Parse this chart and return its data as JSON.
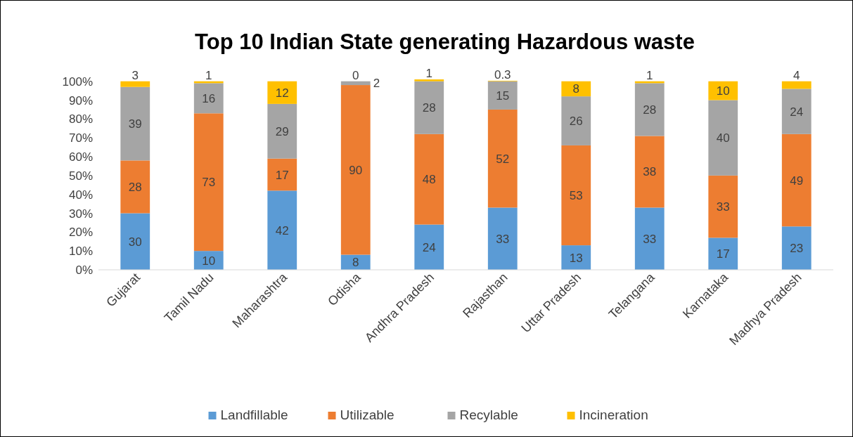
{
  "chart_data": {
    "type": "bar",
    "title": "Top 10 Indian State generating Hazardous waste",
    "categories": [
      "Gujarat",
      "Tamil Nadu",
      "Maharashtra",
      "Odisha",
      "Andhra Pradesh",
      "Rajasthan",
      "Uttar Pradesh",
      "Telangana",
      "Karnataka",
      "Madhya Pradesh"
    ],
    "stacked": true,
    "data_labels": true,
    "legend": "bottom",
    "ylim": [
      0,
      101
    ],
    "yticks": [
      {
        "value": 0,
        "label": "0%"
      },
      {
        "value": 10,
        "label": "10%"
      },
      {
        "value": 20,
        "label": "20%"
      },
      {
        "value": 30,
        "label": "30%"
      },
      {
        "value": 40,
        "label": "40%"
      },
      {
        "value": 50,
        "label": "50%"
      },
      {
        "value": 60,
        "label": "60%"
      },
      {
        "value": 70,
        "label": "70%"
      },
      {
        "value": 80,
        "label": "80%"
      },
      {
        "value": 90,
        "label": "90%"
      },
      {
        "value": 100,
        "label": "100%"
      }
    ],
    "series": [
      {
        "name": "Landfillable",
        "color": "#5b9bd5",
        "values": [
          30,
          10,
          42,
          8,
          24,
          33,
          13,
          33,
          17,
          23
        ]
      },
      {
        "name": "Utilizable",
        "color": "#ed7d31",
        "values": [
          28,
          73,
          17,
          90,
          48,
          52,
          53,
          38,
          33,
          49
        ]
      },
      {
        "name": "Recylable",
        "color": "#a5a5a5",
        "values": [
          39,
          16,
          29,
          2,
          28,
          15,
          26,
          28,
          40,
          24
        ]
      },
      {
        "name": "Incineration",
        "color": "#ffc000",
        "values": [
          3,
          1,
          12,
          0,
          1,
          0.3,
          8,
          1,
          10,
          4
        ]
      }
    ]
  }
}
